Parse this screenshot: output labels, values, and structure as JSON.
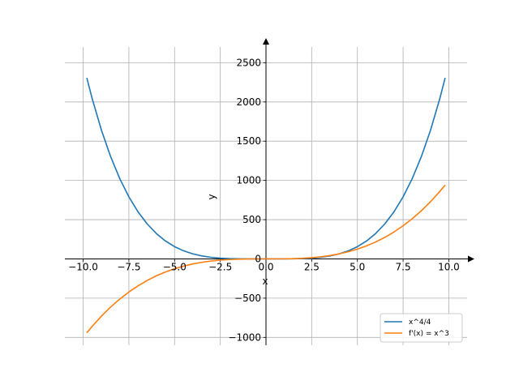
{
  "chart_data": {
    "type": "line",
    "title": "",
    "xlabel": "x",
    "ylabel": "y",
    "xlim": [
      -11,
      11
    ],
    "ylim": [
      -1100,
      2700
    ],
    "x_ticks": [
      -10.0,
      -7.5,
      -5.0,
      -2.5,
      0.0,
      2.5,
      5.0,
      7.5,
      10.0
    ],
    "x_tick_labels": [
      "−10.0",
      "−7.5",
      "−5.0",
      "−2.5",
      "0.0",
      "2.5",
      "5.0",
      "7.5",
      "10.0"
    ],
    "y_ticks": [
      -1000,
      -500,
      0,
      500,
      1000,
      1500,
      2000,
      2500
    ],
    "y_tick_labels": [
      "−1000",
      "−500",
      "0",
      "500",
      "1000",
      "1500",
      "2000",
      "2500"
    ],
    "grid": true,
    "legend_position": "lower-right",
    "series": [
      {
        "name": "x^4/4",
        "color": "#1f77b4",
        "x": [
          -9.8,
          -9.5,
          -9.0,
          -8.5,
          -8.0,
          -7.5,
          -7.0,
          -6.5,
          -6.0,
          -5.5,
          -5.0,
          -4.5,
          -4.0,
          -3.5,
          -3.0,
          -2.5,
          -2.0,
          -1.5,
          -1.0,
          -0.5,
          0.0,
          0.5,
          1.0,
          1.5,
          2.0,
          2.5,
          3.0,
          3.5,
          4.0,
          4.5,
          5.0,
          5.5,
          6.0,
          6.5,
          7.0,
          7.5,
          8.0,
          8.5,
          9.0,
          9.5,
          9.8
        ],
        "y": [
          2306.6,
          2036.3,
          1640.3,
          1305.0,
          1024.0,
          791.0,
          600.3,
          446.3,
          324.0,
          228.8,
          156.3,
          102.5,
          64.0,
          37.5,
          20.3,
          9.8,
          4.0,
          1.3,
          0.25,
          0.02,
          0.0,
          0.02,
          0.25,
          1.3,
          4.0,
          9.8,
          20.3,
          37.5,
          64.0,
          102.5,
          156.3,
          228.8,
          324.0,
          446.3,
          600.3,
          791.0,
          1024.0,
          1305.0,
          1640.3,
          2036.3,
          2306.6
        ]
      },
      {
        "name": "f'(x) = x^3",
        "color": "#ff7f0e",
        "x": [
          -9.8,
          -9.5,
          -9.0,
          -8.5,
          -8.0,
          -7.5,
          -7.0,
          -6.5,
          -6.0,
          -5.5,
          -5.0,
          -4.5,
          -4.0,
          -3.5,
          -3.0,
          -2.5,
          -2.0,
          -1.5,
          -1.0,
          -0.5,
          0.0,
          0.5,
          1.0,
          1.5,
          2.0,
          2.5,
          3.0,
          3.5,
          4.0,
          4.5,
          5.0,
          5.5,
          6.0,
          6.5,
          7.0,
          7.5,
          8.0,
          8.5,
          9.0,
          9.5,
          9.8
        ],
        "y": [
          -941.2,
          -857.4,
          -729.0,
          -614.1,
          -512.0,
          -421.9,
          -343.0,
          -274.6,
          -216.0,
          -166.4,
          -125.0,
          -91.1,
          -64.0,
          -42.9,
          -27.0,
          -15.6,
          -8.0,
          -3.4,
          -1.0,
          -0.13,
          0.0,
          0.13,
          1.0,
          3.4,
          8.0,
          15.6,
          27.0,
          42.9,
          64.0,
          91.1,
          125.0,
          166.4,
          216.0,
          274.6,
          343.0,
          421.9,
          512.0,
          614.1,
          729.0,
          857.4,
          941.2
        ]
      }
    ]
  }
}
